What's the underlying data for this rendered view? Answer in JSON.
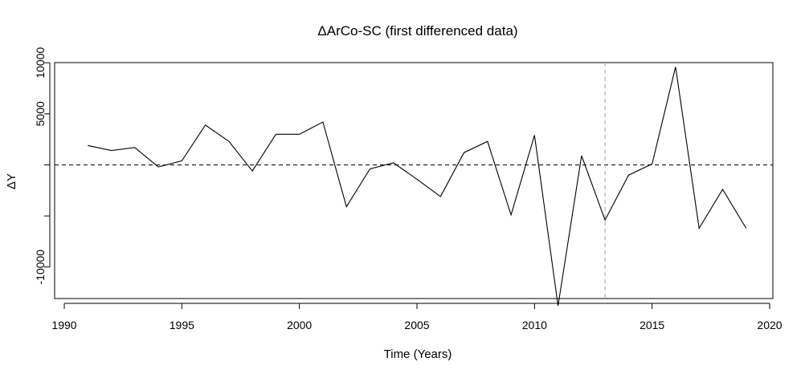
{
  "chart_data": {
    "type": "line",
    "title": "ΔArCo-SC (first differenced data)",
    "xlabel": "Time (Years)",
    "ylabel": "ΔY",
    "xlim": [
      1990,
      2020
    ],
    "ylim": [
      -14500,
      10800
    ],
    "x_ticks": [
      1990,
      1995,
      2000,
      2005,
      2010,
      2015,
      2020
    ],
    "y_ticks": [
      -10000,
      5000,
      10000
    ],
    "y_tick_labels": [
      "-10000",
      "5000",
      "10000"
    ],
    "series": [
      {
        "x": [
          1991,
          1992,
          1993,
          1994,
          1995,
          1996,
          1997,
          1998,
          1999,
          2000,
          2001,
          2002,
          2003,
          2004,
          2005,
          2006,
          2007,
          2008,
          2009,
          2010,
          2011,
          2012,
          2013,
          2014,
          2015,
          2016,
          2017,
          2018,
          2019
        ],
        "values": [
          1900,
          1400,
          1700,
          -200,
          400,
          3900,
          2300,
          -600,
          3000,
          3000,
          4200,
          -4100,
          -400,
          200,
          -1400,
          -3100,
          1200,
          2300,
          -4900,
          2900,
          -13800,
          900,
          -5400,
          -1000,
          100,
          9600,
          -6200,
          -2400,
          -6200
        ],
        "color": "#000000"
      }
    ],
    "reference_lines": [
      {
        "orientation": "horizontal",
        "value": 0,
        "style": "dashed",
        "color": "#000000"
      },
      {
        "orientation": "vertical",
        "value": 2013,
        "style": "dashed",
        "color": "#b0b0b0"
      }
    ],
    "grid": false,
    "legend": "none"
  }
}
